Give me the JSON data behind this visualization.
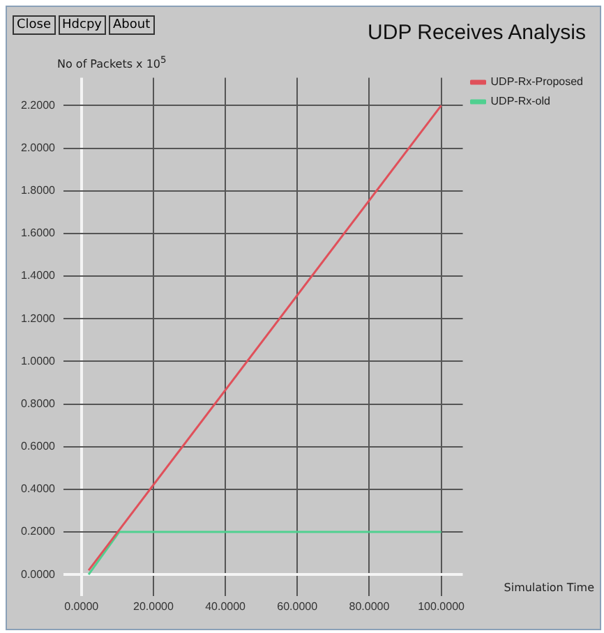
{
  "chart_data": {
    "type": "line",
    "title": "UDP Receives Analysis",
    "ylabel": "No of Packets x 10$^{5}$",
    "xlabel": "Simulation Time",
    "annotations": [
      "Close",
      "Hdcpy",
      "About"
    ],
    "series": [
      {
        "name": "UDP-Rx-Proposed",
        "color": "#e0505a",
        "x": [
          2,
          100
        ],
        "values": [
          0.02,
          2.2
        ]
      },
      {
        "name": "UDP-Rx-old",
        "color": "#50d090",
        "x": [
          2,
          10.5,
          100
        ],
        "values": [
          0.0,
          0.2,
          0.2
        ]
      }
    ],
    "xlim": [
      -5,
      106
    ],
    "ylim": [
      -0.1,
      2.33
    ],
    "xticks": [
      {
        "value": 0,
        "label": "0.0000"
      },
      {
        "value": 20,
        "label": "20.0000"
      },
      {
        "value": 40,
        "label": "40.0000"
      },
      {
        "value": 60,
        "label": "60.0000"
      },
      {
        "value": 80,
        "label": "80.0000"
      },
      {
        "value": 100,
        "label": "100.0000"
      }
    ],
    "yticks": [
      {
        "value": 0,
        "label": "0.0000"
      },
      {
        "value": 0.2,
        "label": "0.2000"
      },
      {
        "value": 0.4,
        "label": "0.4000"
      },
      {
        "value": 0.6,
        "label": "0.6000"
      },
      {
        "value": 0.8,
        "label": "0.8000"
      },
      {
        "value": 1,
        "label": "1.0000"
      },
      {
        "value": 1.2,
        "label": "1.2000"
      },
      {
        "value": 1.4,
        "label": "1.4000"
      },
      {
        "value": 1.6,
        "label": "1.6000"
      },
      {
        "value": 1.8,
        "label": "1.8000"
      },
      {
        "value": 2,
        "label": "2.0000"
      },
      {
        "value": 2.2,
        "label": "2.2000"
      }
    ],
    "grid": true,
    "legend": "top right",
    "marker": "none",
    "line_style": "solid"
  }
}
